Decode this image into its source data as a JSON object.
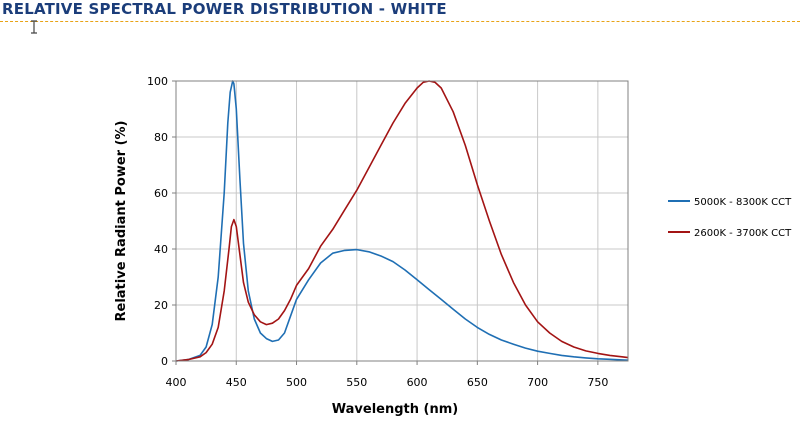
{
  "page": {
    "title": "RELATIVE SPECTRAL POWER DISTRIBUTION - WHITE",
    "cursor_icon": "text-cursor-icon"
  },
  "colors": {
    "title": "#1b3d7a",
    "rule": "#e8a317",
    "grid": "#c8c8c8",
    "plot_border": "#808080"
  },
  "chart_data": {
    "type": "line",
    "title": "",
    "xlabel": "Wavelength (nm)",
    "ylabel": "Relative Radiant Power (%)",
    "xlim": [
      400,
      775
    ],
    "ylim": [
      0,
      100
    ],
    "xticks": [
      400,
      450,
      500,
      550,
      600,
      650,
      700,
      750
    ],
    "yticks": [
      0,
      20,
      40,
      60,
      80,
      100
    ],
    "grid": true,
    "legend_position": "right",
    "series": [
      {
        "name": "5000K - 8300K CCT",
        "color": "#1f6fb4",
        "x": [
          400,
          410,
          420,
          425,
          430,
          435,
          440,
          443,
          445,
          447,
          448,
          450,
          453,
          456,
          460,
          465,
          470,
          475,
          480,
          485,
          490,
          495,
          500,
          510,
          520,
          530,
          540,
          550,
          560,
          570,
          580,
          590,
          600,
          610,
          620,
          630,
          640,
          650,
          660,
          670,
          680,
          690,
          700,
          710,
          720,
          730,
          740,
          750,
          760,
          770,
          775
        ],
        "y": [
          0,
          0.5,
          2,
          5,
          13,
          30,
          60,
          85,
          96,
          100,
          99,
          90,
          65,
          42,
          25,
          15,
          10,
          8,
          7,
          7.5,
          10,
          16,
          22,
          29,
          35,
          38.5,
          39.5,
          39.8,
          39,
          37.5,
          35.5,
          32.5,
          29,
          25.5,
          22,
          18.5,
          15,
          12,
          9.5,
          7.5,
          6,
          4.6,
          3.5,
          2.7,
          2,
          1.5,
          1.1,
          0.8,
          0.6,
          0.4,
          0.3
        ]
      },
      {
        "name": "2600K - 3700K CCT",
        "color": "#a31414",
        "x": [
          400,
          410,
          420,
          425,
          430,
          435,
          440,
          444,
          446,
          448,
          450,
          453,
          456,
          460,
          465,
          470,
          475,
          480,
          485,
          490,
          495,
          500,
          510,
          520,
          530,
          540,
          550,
          560,
          570,
          580,
          590,
          600,
          605,
          610,
          615,
          620,
          630,
          640,
          650,
          660,
          670,
          680,
          690,
          700,
          710,
          720,
          730,
          740,
          750,
          760,
          770,
          775
        ],
        "y": [
          0,
          0.5,
          1.5,
          3,
          6,
          12,
          25,
          40,
          48,
          50.5,
          48,
          38,
          28,
          21,
          16.5,
          14,
          13,
          13.5,
          15,
          18,
          22,
          27,
          33,
          41,
          47,
          54,
          61,
          69,
          77,
          85,
          92,
          97.5,
          99.5,
          100,
          99.5,
          97.5,
          89,
          77,
          63,
          50,
          38,
          28,
          20,
          14,
          10,
          7,
          5,
          3.6,
          2.7,
          2,
          1.5,
          1.2
        ]
      }
    ]
  }
}
